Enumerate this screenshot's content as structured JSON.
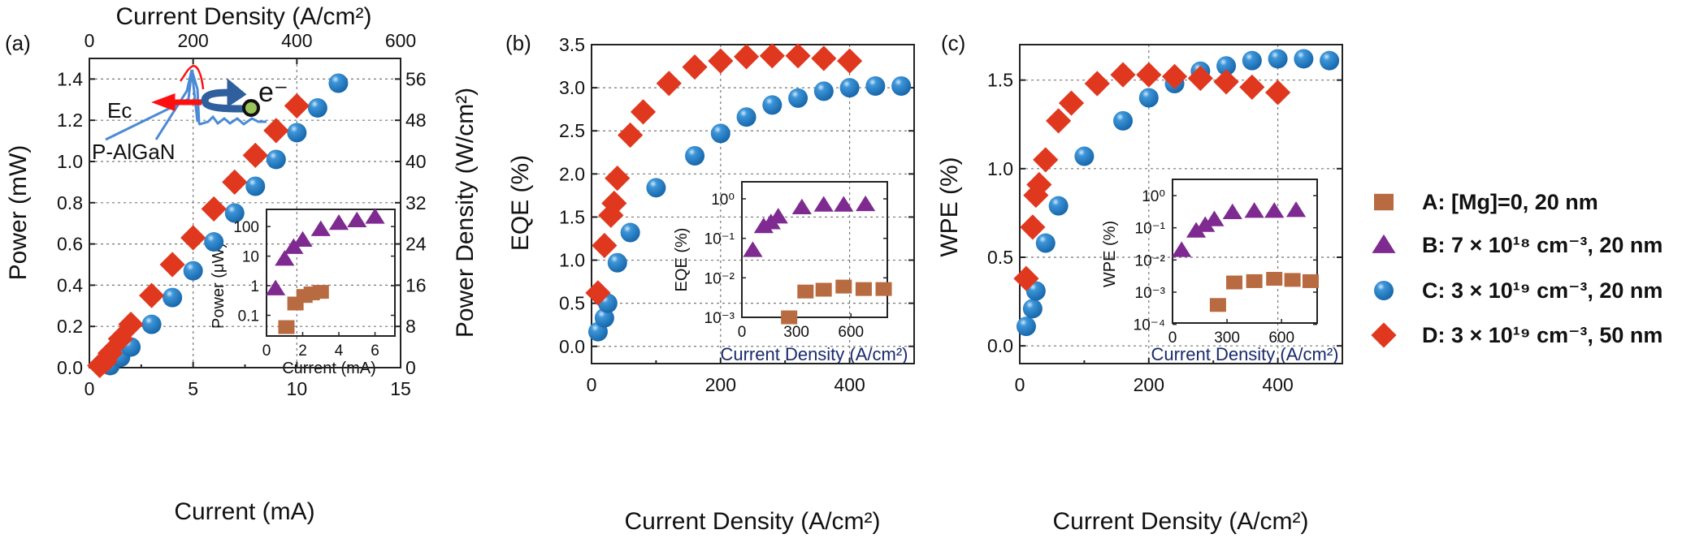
{
  "colors": {
    "A": "#b86a40",
    "B": "#7e2a90",
    "C": "#1f7cc6",
    "D": "#e0381f"
  },
  "legend": [
    {
      "key": "A",
      "label": "A: [Mg]=0, 20 nm",
      "marker": "square"
    },
    {
      "key": "B",
      "label": "B: 7 × 10¹⁸ cm⁻³, 20 nm",
      "marker": "triangle"
    },
    {
      "key": "C",
      "label": "C: 3 × 10¹⁹ cm⁻³, 20 nm",
      "marker": "circle"
    },
    {
      "key": "D",
      "label": "D: 3 × 10¹⁹ cm⁻³, 50 nm",
      "marker": "diamond"
    }
  ],
  "annotation": {
    "ec": "Ec",
    "p_algan": "P-AlGaN",
    "electron": "e⁻"
  },
  "chart_data": [
    {
      "panel": "(a)",
      "type": "scatter",
      "xlabel": "Current (mA)",
      "ylabel": "Power (mW)",
      "xlim": [
        0,
        15
      ],
      "ylim": [
        0,
        1.5
      ],
      "grid": true,
      "xticks": [
        0,
        5,
        10,
        15
      ],
      "yticks": [
        "0.0",
        "0.2",
        "0.4",
        "0.6",
        "0.8",
        "1.0",
        "1.2",
        "1.4"
      ],
      "top_axis": {
        "label": "Current Density (A/cm²)",
        "ticks": [
          0,
          200,
          400,
          600
        ],
        "lim": [
          0,
          600
        ]
      },
      "right_axis": {
        "label": "Power Density (W/cm²)",
        "ticks": [
          0,
          8,
          16,
          24,
          32,
          40,
          48,
          56
        ],
        "lim": [
          0,
          60
        ]
      },
      "series": [
        {
          "key": "C",
          "x": [
            1,
            1.5,
            2,
            3,
            4,
            5,
            6,
            7,
            8,
            9,
            10,
            11,
            12
          ],
          "y": [
            0.01,
            0.05,
            0.1,
            0.21,
            0.34,
            0.47,
            0.61,
            0.75,
            0.88,
            1.01,
            1.14,
            1.26,
            1.38
          ]
        },
        {
          "key": "D",
          "x": [
            0.5,
            0.75,
            1,
            1.5,
            2,
            3,
            4,
            5,
            6,
            7,
            8,
            9,
            10
          ],
          "y": [
            0.01,
            0.03,
            0.07,
            0.14,
            0.21,
            0.35,
            0.5,
            0.63,
            0.77,
            0.9,
            1.03,
            1.15,
            1.27
          ]
        }
      ],
      "inset": {
        "xlabel": "Current (mA)",
        "ylabel": "Power (μW)",
        "ylog": true,
        "xlim": [
          0,
          7.1
        ],
        "ylim": [
          0.02,
          380
        ],
        "xticks": [
          0,
          2,
          4,
          6
        ],
        "yticks": [
          {
            "v": 0.1,
            "label": "0.1"
          },
          {
            "v": 1,
            "label": "1"
          },
          {
            "v": 10,
            "label": "10"
          },
          {
            "v": 100,
            "label": "100"
          }
        ],
        "series": [
          {
            "key": "B",
            "x": [
              0.5,
              1,
              1.5,
              2,
              3,
              4,
              5,
              6
            ],
            "y": [
              0.8,
              8,
              20,
              35,
              80,
              130,
              160,
              210
            ]
          },
          {
            "key": "A",
            "x": [
              1.1,
              1.6,
              2.1,
              2.5,
              3.0
            ],
            "y": [
              0.04,
              0.25,
              0.45,
              0.55,
              0.62
            ]
          }
        ]
      }
    },
    {
      "panel": "(b)",
      "type": "scatter",
      "xlabel": "Current Density (A/cm²)",
      "ylabel": "EQE (%)",
      "xlim": [
        0,
        500
      ],
      "ylim": [
        -0.2,
        3.5
      ],
      "grid": true,
      "xticks": [
        0,
        200,
        400
      ],
      "yticks": [
        "0.0",
        "0.5",
        "1.0",
        "1.5",
        "2.0",
        "2.5",
        "3.0",
        "3.5"
      ],
      "series": [
        {
          "key": "C",
          "x": [
            10,
            20,
            25,
            40,
            60,
            100,
            160,
            200,
            240,
            280,
            320,
            360,
            400,
            440,
            480
          ],
          "y": [
            0.17,
            0.33,
            0.5,
            0.97,
            1.32,
            1.84,
            2.21,
            2.47,
            2.66,
            2.8,
            2.88,
            2.96,
            3.0,
            3.02,
            3.02
          ]
        },
        {
          "key": "D",
          "x": [
            10,
            20,
            30,
            35,
            40,
            60,
            80,
            120,
            160,
            200,
            240,
            280,
            320,
            360,
            400
          ],
          "y": [
            0.62,
            1.17,
            1.52,
            1.66,
            1.95,
            2.45,
            2.72,
            3.05,
            3.24,
            3.31,
            3.36,
            3.37,
            3.37,
            3.34,
            3.31
          ]
        }
      ],
      "inset": {
        "xlabel": "Current Density (A/cm²)",
        "ylabel": "EQE (%)",
        "ylog": true,
        "xlim": [
          0,
          800
        ],
        "ylim": [
          0.001,
          2.7
        ],
        "xticks": [
          0,
          300,
          600
        ],
        "yticks": [
          {
            "v": 0.001,
            "label": "10⁻³"
          },
          {
            "v": 0.01,
            "label": "10⁻²"
          },
          {
            "v": 0.1,
            "label": "10⁻¹"
          },
          {
            "v": 1,
            "label": "10⁰"
          }
        ],
        "series": [
          {
            "key": "B",
            "x": [
              60,
              120,
              160,
              200,
              330,
              450,
              560,
              680
            ],
            "y": [
              0.05,
              0.2,
              0.25,
              0.35,
              0.6,
              0.7,
              0.7,
              0.72
            ]
          },
          {
            "key": "A",
            "x": [
              260,
              350,
              450,
              560,
              670,
              780
            ],
            "y": [
              0.001,
              0.0045,
              0.005,
              0.006,
              0.0052,
              0.0052
            ]
          }
        ]
      }
    },
    {
      "panel": "(c)",
      "type": "scatter",
      "xlabel": "Current Density (A/cm²)",
      "ylabel": "WPE (%)",
      "xlim": [
        0,
        500
      ],
      "ylim": [
        -0.1,
        1.7
      ],
      "grid": true,
      "xticks": [
        0,
        200,
        400
      ],
      "yticks": [
        "0.0",
        "0.5",
        "1.0",
        "1.5"
      ],
      "series": [
        {
          "key": "C",
          "x": [
            10,
            20,
            25,
            40,
            60,
            100,
            160,
            200,
            240,
            280,
            320,
            360,
            400,
            440,
            480
          ],
          "y": [
            0.11,
            0.21,
            0.31,
            0.58,
            0.79,
            1.07,
            1.27,
            1.4,
            1.48,
            1.55,
            1.58,
            1.61,
            1.62,
            1.62,
            1.61
          ]
        },
        {
          "key": "D",
          "x": [
            10,
            20,
            25,
            30,
            40,
            60,
            80,
            120,
            160,
            200,
            240,
            280,
            320,
            360,
            400
          ],
          "y": [
            0.38,
            0.67,
            0.85,
            0.91,
            1.05,
            1.27,
            1.37,
            1.48,
            1.53,
            1.53,
            1.52,
            1.51,
            1.49,
            1.46,
            1.43
          ]
        }
      ],
      "inset": {
        "xlabel": "Current Density (A/cm²)",
        "ylabel": "WPE (%)",
        "ylog": true,
        "xlim": [
          0,
          796
        ],
        "ylim": [
          0.00011,
          3.2
        ],
        "xticks": [
          0,
          300,
          600
        ],
        "yticks": [
          {
            "v": 0.0001,
            "label": "10⁻⁴"
          },
          {
            "v": 0.001,
            "label": "10⁻³"
          },
          {
            "v": 0.01,
            "label": "10⁻²"
          },
          {
            "v": 0.1,
            "label": "10⁻¹"
          },
          {
            "v": 1,
            "label": "10⁰"
          }
        ],
        "series": [
          {
            "key": "B",
            "x": [
              50,
              130,
              180,
              230,
              330,
              450,
              560,
              680
            ],
            "y": [
              0.02,
              0.08,
              0.12,
              0.18,
              0.3,
              0.33,
              0.33,
              0.35
            ]
          },
          {
            "key": "A",
            "x": [
              250,
              340,
              450,
              560,
              660,
              760
            ],
            "y": [
              0.0004,
              0.002,
              0.0022,
              0.0026,
              0.0024,
              0.0022
            ]
          }
        ]
      }
    }
  ]
}
